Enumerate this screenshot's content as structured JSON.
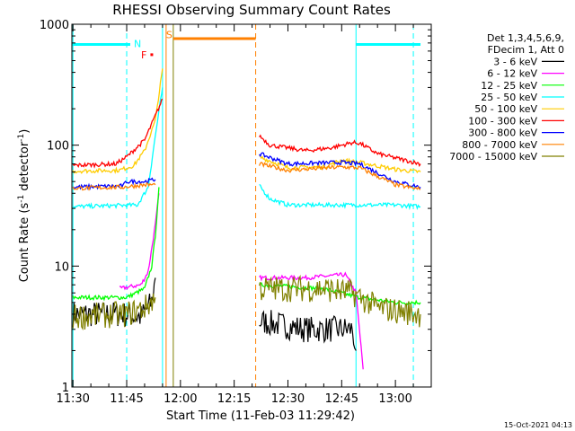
{
  "chart_data": {
    "type": "line",
    "title": "RHESSI Observing Summary Count Rates",
    "xlabel": "Start Time (11-Feb-03 11:29:42)",
    "ylabel_parts": [
      "Count Rate (s",
      "-1",
      " detector",
      "-1",
      ")"
    ],
    "ylim": [
      1,
      1000
    ],
    "y_scale": "log",
    "y_ticks": [
      {
        "v": 1,
        "label": "1"
      },
      {
        "v": 10,
        "label": "10"
      },
      {
        "v": 100,
        "label": "100"
      },
      {
        "v": 1000,
        "label": "1000"
      }
    ],
    "xlim": [
      "11:29:42",
      "13:10:00"
    ],
    "x_ticks": [
      "11:30",
      "11:45",
      "12:00",
      "12:15",
      "12:30",
      "12:45",
      "13:00"
    ],
    "legend_header": [
      "Det 1,3,4,5,6,9,",
      "FDecim 1, Att 0"
    ],
    "legend_placement": "right",
    "series": [
      {
        "name": "3 - 6 keV",
        "color": "#000000",
        "segments": [
          [
            [
              "11:30",
              4
            ],
            [
              "11:44",
              4
            ],
            [
              "11:49",
              3.8
            ],
            [
              "11:52",
              5
            ],
            [
              "11:53",
              8
            ]
          ],
          [
            [
              "12:22",
              3.5
            ],
            [
              "12:35",
              3
            ],
            [
              "12:48",
              3
            ],
            [
              "12:49",
              2
            ]
          ]
        ]
      },
      {
        "name": "6 - 12 keV",
        "color": "#ff00ff",
        "segments": [
          [
            [
              "11:43",
              6.5
            ],
            [
              "11:49",
              7
            ],
            [
              "11:51",
              9
            ],
            [
              "11:53",
              22
            ],
            [
              "11:54",
              40
            ]
          ],
          [
            [
              "12:22",
              8
            ],
            [
              "12:35",
              8
            ],
            [
              "12:46",
              8.5
            ],
            [
              "12:49",
              6
            ],
            [
              "12:51",
              1.4
            ]
          ]
        ]
      },
      {
        "name": "12 - 25 keV",
        "color": "#00ff00",
        "segments": [
          [
            [
              "11:30",
              5.5
            ],
            [
              "11:45",
              5.5
            ],
            [
              "11:50",
              6.5
            ],
            [
              "11:52",
              10
            ],
            [
              "11:53",
              18
            ],
            [
              "11:54",
              45
            ]
          ],
          [
            [
              "12:22",
              7
            ],
            [
              "12:40",
              6.5
            ],
            [
              "12:50",
              5.5
            ],
            [
              "13:00",
              5
            ],
            [
              "13:07",
              5
            ]
          ]
        ]
      },
      {
        "name": "25 - 50 keV",
        "color": "#00ffff",
        "segments": [
          [
            [
              "11:30",
              31
            ],
            [
              "11:48",
              32
            ],
            [
              "11:51",
              45
            ],
            [
              "11:53",
              120
            ],
            [
              "11:55",
              300
            ]
          ],
          [
            [
              "12:22",
              46
            ],
            [
              "12:25",
              36
            ],
            [
              "12:30",
              32
            ],
            [
              "12:45",
              32
            ],
            [
              "13:00",
              32
            ],
            [
              "13:07",
              31
            ]
          ]
        ]
      },
      {
        "name": "50 - 100 keV",
        "color": "#ffcc00",
        "segments": [
          [
            [
              "11:30",
              61
            ],
            [
              "11:43",
              62
            ],
            [
              "11:47",
              68
            ],
            [
              "11:50",
              90
            ],
            [
              "11:53",
              160
            ],
            [
              "11:55",
              430
            ]
          ],
          [
            [
              "12:22",
              80
            ],
            [
              "12:30",
              65
            ],
            [
              "12:40",
              66
            ],
            [
              "12:45",
              75
            ],
            [
              "12:50",
              72
            ],
            [
              "13:00",
              63
            ],
            [
              "13:07",
              60
            ]
          ]
        ]
      },
      {
        "name": "100 - 300 keV",
        "color": "#ff0000",
        "segments": [
          [
            [
              "11:30",
              68
            ],
            [
              "11:42",
              70
            ],
            [
              "11:45",
              80
            ],
            [
              "11:50",
              110
            ],
            [
              "11:53",
              175
            ],
            [
              "11:55",
              240
            ]
          ],
          [
            [
              "12:22",
              120
            ],
            [
              "12:25",
              100
            ],
            [
              "12:35",
              90
            ],
            [
              "12:42",
              95
            ],
            [
              "12:48",
              105
            ],
            [
              "12:50",
              104
            ],
            [
              "12:55",
              85
            ],
            [
              "13:07",
              70
            ]
          ]
        ]
      },
      {
        "name": "300 - 800 keV",
        "color": "#0000ff",
        "segments": [
          [
            [
              "11:30",
              45
            ],
            [
              "11:44",
              46
            ],
            [
              "11:45",
              50
            ],
            [
              "11:50",
              50
            ],
            [
              "11:53",
              52
            ]
          ],
          [
            [
              "12:22",
              85
            ],
            [
              "12:30",
              70
            ],
            [
              "12:45",
              72
            ],
            [
              "12:50",
              70
            ],
            [
              "13:00",
              50
            ],
            [
              "13:07",
              45
            ]
          ]
        ]
      },
      {
        "name": "800 - 7000 keV",
        "color": "#ff8000",
        "segments": [
          [
            [
              "11:30",
              44
            ],
            [
              "11:44",
              45
            ],
            [
              "11:50",
              47
            ],
            [
              "11:53",
              47
            ]
          ],
          [
            [
              "12:22",
              70
            ],
            [
              "12:30",
              62
            ],
            [
              "12:45",
              66
            ],
            [
              "12:50",
              65
            ],
            [
              "13:00",
              47
            ],
            [
              "13:07",
              43
            ]
          ]
        ]
      },
      {
        "name": "7000 - 15000 keV",
        "color": "#808000",
        "segments": [
          [
            [
              "11:30",
              3.8
            ],
            [
              "11:45",
              4
            ],
            [
              "11:50",
              4.5
            ],
            [
              "11:53",
              5.5
            ]
          ],
          [
            [
              "12:22",
              6.5
            ],
            [
              "12:40",
              6.5
            ],
            [
              "12:48",
              6
            ],
            [
              "12:55",
              4.5
            ],
            [
              "13:07",
              4
            ]
          ]
        ]
      }
    ],
    "annotations": {
      "vlines": [
        {
          "t": "11:30",
          "style": "solid",
          "color": "#00ffff"
        },
        {
          "t": "11:45",
          "style": "dashed",
          "color": "#00ffff"
        },
        {
          "t": "11:55",
          "style": "solid",
          "color": "#00ffff"
        },
        {
          "t": "11:56",
          "style": "solid",
          "color": "#ff8000"
        },
        {
          "t": "11:58",
          "style": "solid",
          "color": "#808000"
        },
        {
          "t": "12:21",
          "style": "dashed",
          "color": "#ff8000"
        },
        {
          "t": "12:49",
          "style": "solid",
          "color": "#00ffff"
        },
        {
          "t": "13:05",
          "style": "dashed",
          "color": "#00ffff"
        }
      ],
      "bars": [
        {
          "from": "11:29:42",
          "to": "11:46",
          "y": 680,
          "color": "#00ffff"
        },
        {
          "from": "11:58",
          "to": "12:21",
          "y": 760,
          "color": "#ff8000"
        },
        {
          "from": "12:49",
          "to": "13:07",
          "y": 680,
          "color": "#00ffff"
        }
      ],
      "labels": [
        {
          "text": "N",
          "t": "11:47",
          "y": 690,
          "color": "#00ffff"
        },
        {
          "text": "S",
          "t": "11:56",
          "y": 820,
          "color": "#ff8000"
        },
        {
          "text": "F",
          "t": "11:49",
          "y": 560,
          "color": "#ff0000"
        }
      ],
      "markers": [
        {
          "t": "11:52",
          "y": 560,
          "color": "#ff0000"
        }
      ]
    }
  },
  "footer": {
    "timestamp": "15-Oct-2021 04:13"
  }
}
